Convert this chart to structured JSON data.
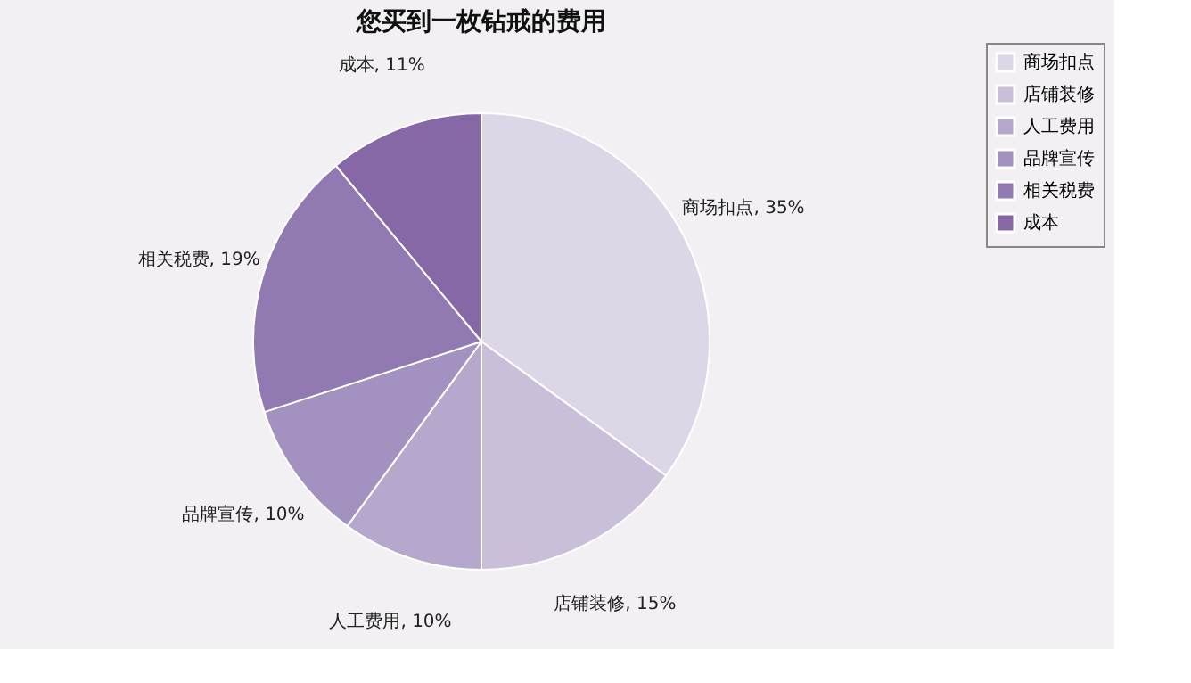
{
  "chart_data": {
    "type": "pie",
    "title": "您买到一枚钻戒的费用",
    "categories": [
      "商场扣点",
      "店铺装修",
      "人工费用",
      "品牌宣传",
      "相关税费",
      "成本"
    ],
    "values": [
      35,
      15,
      10,
      10,
      19,
      11
    ],
    "value_labels": [
      "商场扣点, 35%",
      "店铺装修, 15%",
      "人工费用, 10%",
      "品牌宣传, 10%",
      "相关税费, 19%",
      "成本, 11%"
    ],
    "colors": [
      "#dcd6e6",
      "#c9bfd9",
      "#b5a8cc",
      "#a391bf",
      "#9179b2",
      "#8668a6"
    ],
    "legend": "right"
  }
}
